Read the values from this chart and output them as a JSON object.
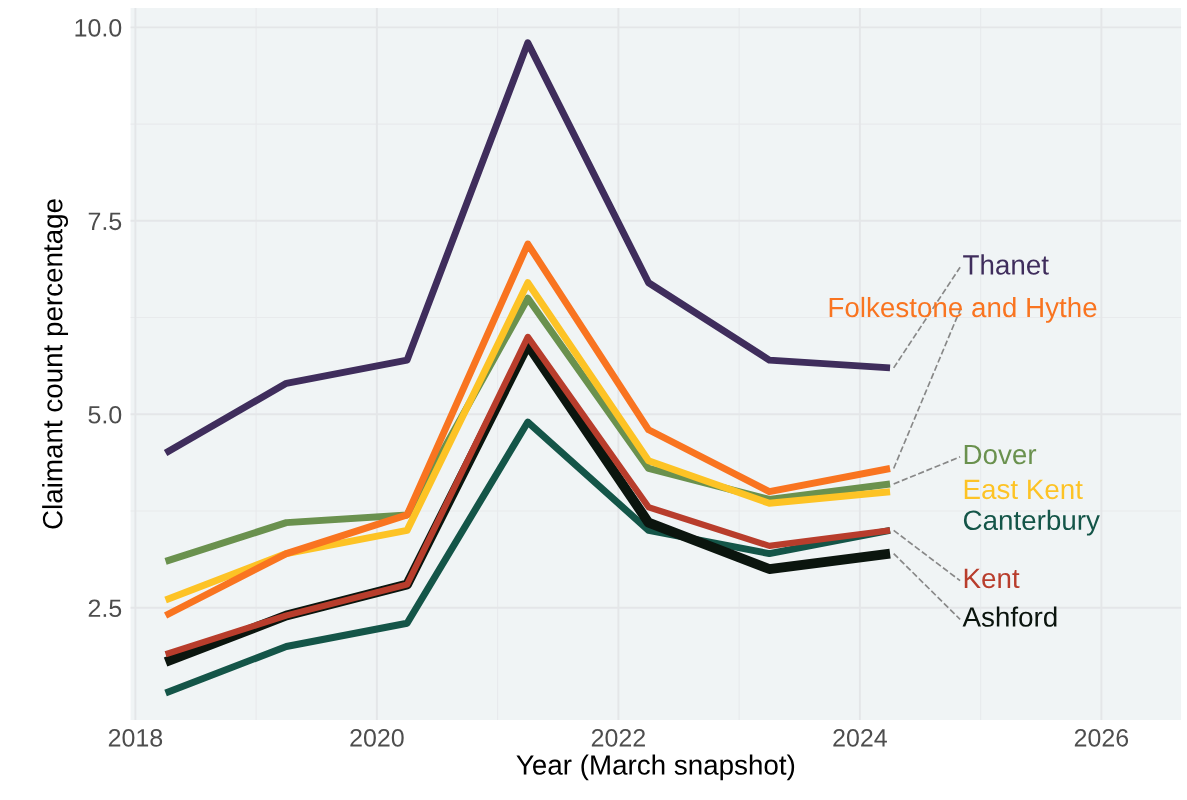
{
  "chart_data": {
    "type": "line",
    "xlabel": "Year (March snapshot)",
    "ylabel": "Claimant count percentage",
    "x": [
      2018.25,
      2019.25,
      2020.25,
      2021.25,
      2022.25,
      2023.25,
      2024.25
    ],
    "xlim": [
      2017.96,
      2026.66
    ],
    "xticks": [
      2018,
      2020,
      2022,
      2024,
      2026
    ],
    "ylim": [
      1.05,
      10.25
    ],
    "yticks": [
      {
        "value": 2.5,
        "label": "2.5"
      },
      {
        "value": 5,
        "label": "5.0"
      },
      {
        "value": 7.5,
        "label": "7.5"
      },
      {
        "value": 10,
        "label": "10.0"
      }
    ],
    "grid": true,
    "legend": false,
    "marker": "none",
    "line_style": "solid",
    "series": [
      {
        "name": "Thanet",
        "color": "#3f2d5c",
        "values": [
          4.5,
          5.4,
          5.7,
          9.8,
          6.7,
          5.7,
          5.6
        ]
      },
      {
        "name": "Dover",
        "color": "#6a914e",
        "values": [
          3.1,
          3.6,
          3.7,
          6.5,
          4.3,
          3.9,
          4.1
        ]
      },
      {
        "name": "East Kent",
        "color": "#fdc325",
        "values": [
          2.6,
          3.2,
          3.5,
          6.7,
          4.4,
          3.85,
          4.0
        ]
      },
      {
        "name": "Folkestone and Hythe",
        "color": "#f97420",
        "values": [
          2.4,
          3.2,
          3.7,
          7.2,
          4.8,
          4.0,
          4.3
        ]
      },
      {
        "name": "Canterbury",
        "color": "#145548",
        "values": [
          1.4,
          2.0,
          2.3,
          4.9,
          3.5,
          3.2,
          3.5
        ]
      },
      {
        "name": "Ashford",
        "color": "#0b150e",
        "values": [
          1.8,
          2.4,
          2.8,
          5.9,
          3.6,
          3.0,
          3.2
        ]
      },
      {
        "name": "Kent",
        "color": "#b83d2c",
        "values": [
          1.9,
          2.4,
          2.8,
          6.0,
          3.8,
          3.3,
          3.5
        ]
      }
    ]
  }
}
